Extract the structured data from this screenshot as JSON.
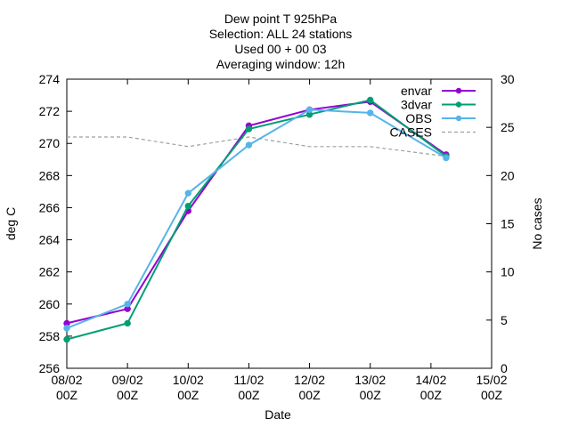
{
  "chart_data": {
    "type": "line",
    "title": [
      "Dew point T 925hPa",
      "Selection: ALL      24 stations",
      "Used 00 + 00 03",
      "Averaging window: 12h"
    ],
    "xlabel": "Date",
    "ylabel": "deg C",
    "y2label": "No cases",
    "x_ticks": [
      {
        "date": "08/02",
        "time": "00Z"
      },
      {
        "date": "09/02",
        "time": "00Z"
      },
      {
        "date": "10/02",
        "time": "00Z"
      },
      {
        "date": "11/02",
        "time": "00Z"
      },
      {
        "date": "12/02",
        "time": "00Z"
      },
      {
        "date": "13/02",
        "time": "00Z"
      },
      {
        "date": "14/02",
        "time": "00Z"
      },
      {
        "date": "15/02",
        "time": "00Z"
      }
    ],
    "xlim": [
      0,
      7
    ],
    "ylim": [
      256,
      274
    ],
    "y_ticks": [
      "256",
      "258",
      "260",
      "262",
      "264",
      "266",
      "268",
      "270",
      "272",
      "274"
    ],
    "y2lim": [
      0,
      30
    ],
    "y2_ticks": [
      "0",
      "5",
      "10",
      "15",
      "20",
      "25",
      "30"
    ],
    "legend_position": "top-right",
    "grid": false,
    "series": [
      {
        "name": "envar",
        "axis": "left",
        "color": "#9400d3",
        "style": "solid",
        "marker": "filled-circle",
        "x": [
          0,
          1,
          2,
          3,
          4,
          5,
          6.25
        ],
        "values": [
          258.8,
          259.7,
          265.8,
          271.1,
          272.1,
          272.6,
          269.3
        ]
      },
      {
        "name": "3dvar",
        "axis": "left",
        "color": "#009e73",
        "style": "solid",
        "marker": "filled-circle",
        "x": [
          0,
          1,
          2,
          3,
          4,
          5,
          6.25
        ],
        "values": [
          257.8,
          258.8,
          266.1,
          270.9,
          271.8,
          272.7,
          269.2
        ]
      },
      {
        "name": "OBS",
        "axis": "left",
        "color": "#56b4e9",
        "style": "solid",
        "marker": "filled-circle",
        "x": [
          0,
          1,
          2,
          3,
          4,
          5,
          6.25
        ],
        "values": [
          258.5,
          260.0,
          266.9,
          269.9,
          272.1,
          271.9,
          269.1
        ]
      },
      {
        "name": "CASES",
        "axis": "right",
        "color": "#a0a0a0",
        "style": "dashed",
        "marker": "none",
        "x": [
          0,
          1,
          2,
          3,
          4,
          5,
          6.25
        ],
        "values": [
          24,
          24,
          23,
          24,
          23,
          23,
          22
        ]
      }
    ]
  }
}
